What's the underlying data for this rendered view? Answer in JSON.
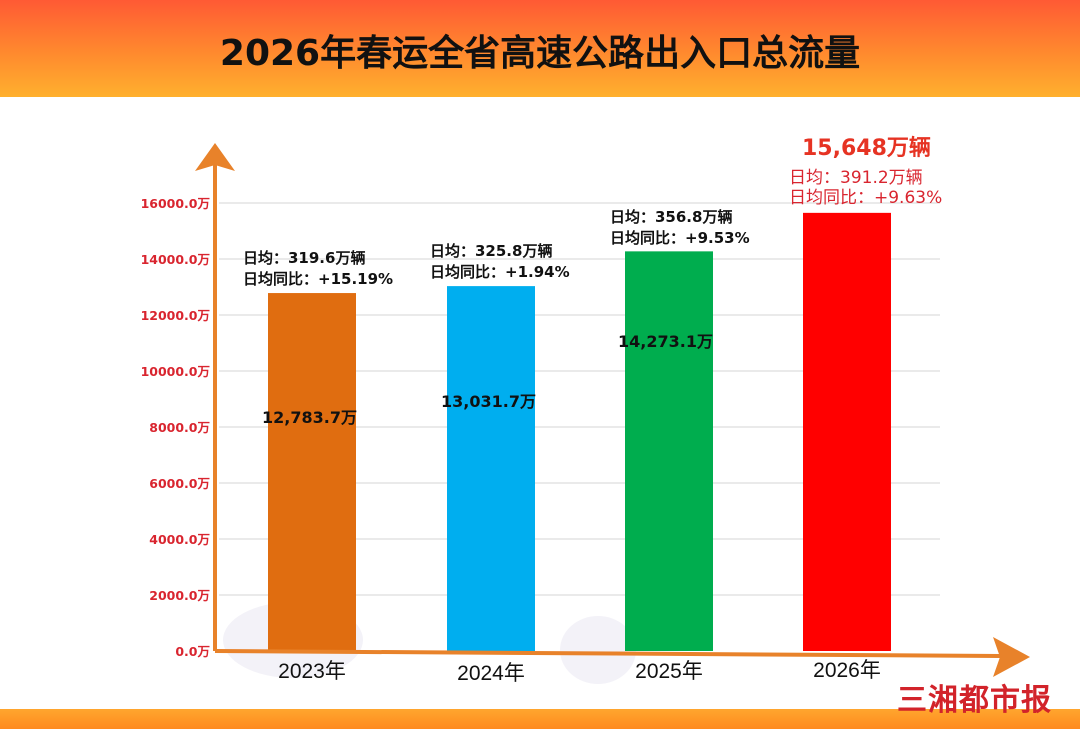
{
  "title": "2026年春运全省高速公路出入口总流量",
  "logo": "三湘都市报",
  "colors": {
    "axis": "#e8822a",
    "tick_label": "#d9252f",
    "grid": "#e3e3e3",
    "highlight_text": "#d9252f"
  },
  "chart_data": {
    "type": "bar",
    "title": "2026年春运全省高速公路出入口总流量",
    "xlabel": "",
    "ylabel": "",
    "ylim": [
      0,
      16000
    ],
    "grid": true,
    "y_ticks": [
      0,
      2000,
      4000,
      6000,
      8000,
      10000,
      12000,
      14000,
      16000
    ],
    "y_tick_labels": [
      "0.0万",
      "2000.0万",
      "4000.0万",
      "6000.0万",
      "8000.0万",
      "10000.0万",
      "12000.0万",
      "14000.0万",
      "16000.0万"
    ],
    "categories": [
      "2023年",
      "2024年",
      "2025年",
      "2026年"
    ],
    "values": [
      12783.7,
      13031.7,
      14273.1,
      15648
    ],
    "bar_colors": [
      "#e06d10",
      "#00aeef",
      "#00ad4e",
      "#ff0000"
    ],
    "value_labels": [
      "12,783.7万",
      "13,031.7万",
      "14,273.1万",
      "15,648万辆"
    ],
    "annotations": [
      {
        "daily": "日均：319.6万辆",
        "yoy": "日均同比：+15.19%"
      },
      {
        "daily": "日均：325.8万辆",
        "yoy": "日均同比：+1.94%"
      },
      {
        "daily": "日均：356.8万辆",
        "yoy": "日均同比：+9.53%"
      },
      {
        "daily": "日均：391.2万辆",
        "yoy": "日均同比：+9.63%"
      }
    ]
  }
}
